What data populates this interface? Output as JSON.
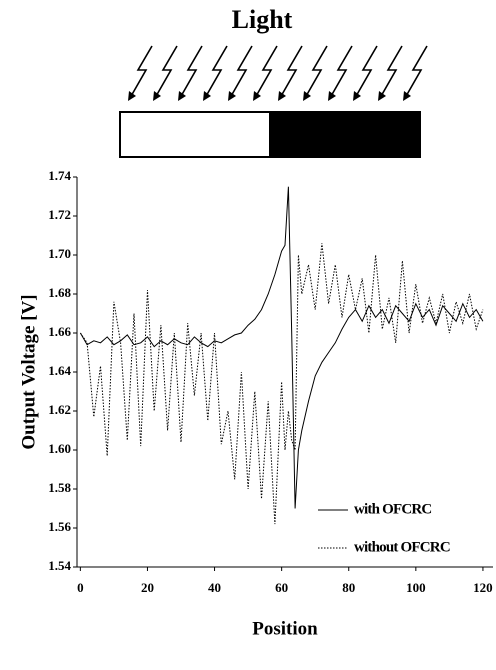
{
  "chart_data": {
    "type": "line",
    "title": "Light",
    "xlabel": "Position",
    "ylabel": "Output Voltage [V]",
    "x": [
      0,
      2,
      4,
      6,
      8,
      10,
      12,
      14,
      16,
      18,
      20,
      22,
      24,
      26,
      28,
      30,
      32,
      34,
      36,
      38,
      40,
      42,
      44,
      46,
      48,
      50,
      52,
      54,
      56,
      58,
      60,
      61,
      62,
      63,
      64,
      65,
      66,
      68,
      70,
      72,
      74,
      76,
      78,
      80,
      82,
      84,
      86,
      88,
      90,
      92,
      94,
      96,
      98,
      100,
      102,
      104,
      106,
      108,
      110,
      112,
      114,
      116,
      118,
      120
    ],
    "series": [
      {
        "name": "with OFCRC",
        "color": "#000000",
        "style": "solid",
        "values": [
          1.66,
          1.654,
          1.656,
          1.655,
          1.658,
          1.654,
          1.656,
          1.659,
          1.654,
          1.655,
          1.658,
          1.653,
          1.656,
          1.654,
          1.657,
          1.655,
          1.654,
          1.658,
          1.655,
          1.653,
          1.656,
          1.655,
          1.657,
          1.659,
          1.66,
          1.664,
          1.667,
          1.672,
          1.68,
          1.69,
          1.702,
          1.705,
          1.735,
          1.66,
          1.57,
          1.6,
          1.61,
          1.625,
          1.638,
          1.645,
          1.65,
          1.655,
          1.662,
          1.668,
          1.672,
          1.666,
          1.674,
          1.668,
          1.672,
          1.665,
          1.674,
          1.67,
          1.666,
          1.675,
          1.668,
          1.672,
          1.664,
          1.674,
          1.67,
          1.666,
          1.675,
          1.668,
          1.672,
          1.666
        ]
      },
      {
        "name": "without OFCRC",
        "color": "#000000",
        "style": "dotted",
        "values": [
          1.66,
          1.655,
          1.617,
          1.643,
          1.597,
          1.676,
          1.655,
          1.605,
          1.67,
          1.602,
          1.682,
          1.62,
          1.664,
          1.61,
          1.66,
          1.604,
          1.665,
          1.628,
          1.66,
          1.615,
          1.66,
          1.603,
          1.62,
          1.585,
          1.64,
          1.58,
          1.63,
          1.575,
          1.625,
          1.562,
          1.635,
          1.6,
          1.62,
          1.605,
          1.6,
          1.7,
          1.68,
          1.695,
          1.672,
          1.706,
          1.675,
          1.695,
          1.668,
          1.69,
          1.672,
          1.688,
          1.66,
          1.7,
          1.662,
          1.678,
          1.655,
          1.697,
          1.66,
          1.685,
          1.665,
          1.678,
          1.665,
          1.68,
          1.66,
          1.676,
          1.665,
          1.68,
          1.662,
          1.672
        ]
      }
    ],
    "xlim": [
      -1,
      123
    ],
    "xticks": [
      0,
      20,
      40,
      60,
      80,
      100,
      120
    ],
    "ylim": [
      1.54,
      1.74
    ],
    "yticks": [
      1.54,
      1.56,
      1.58,
      {
        "value": 1.6,
        "label": "1.60"
      },
      1.62,
      1.64,
      1.66,
      1.68,
      {
        "value": 1.7,
        "label": "1.70"
      },
      1.72,
      1.74
    ],
    "legend": "lower right"
  }
}
